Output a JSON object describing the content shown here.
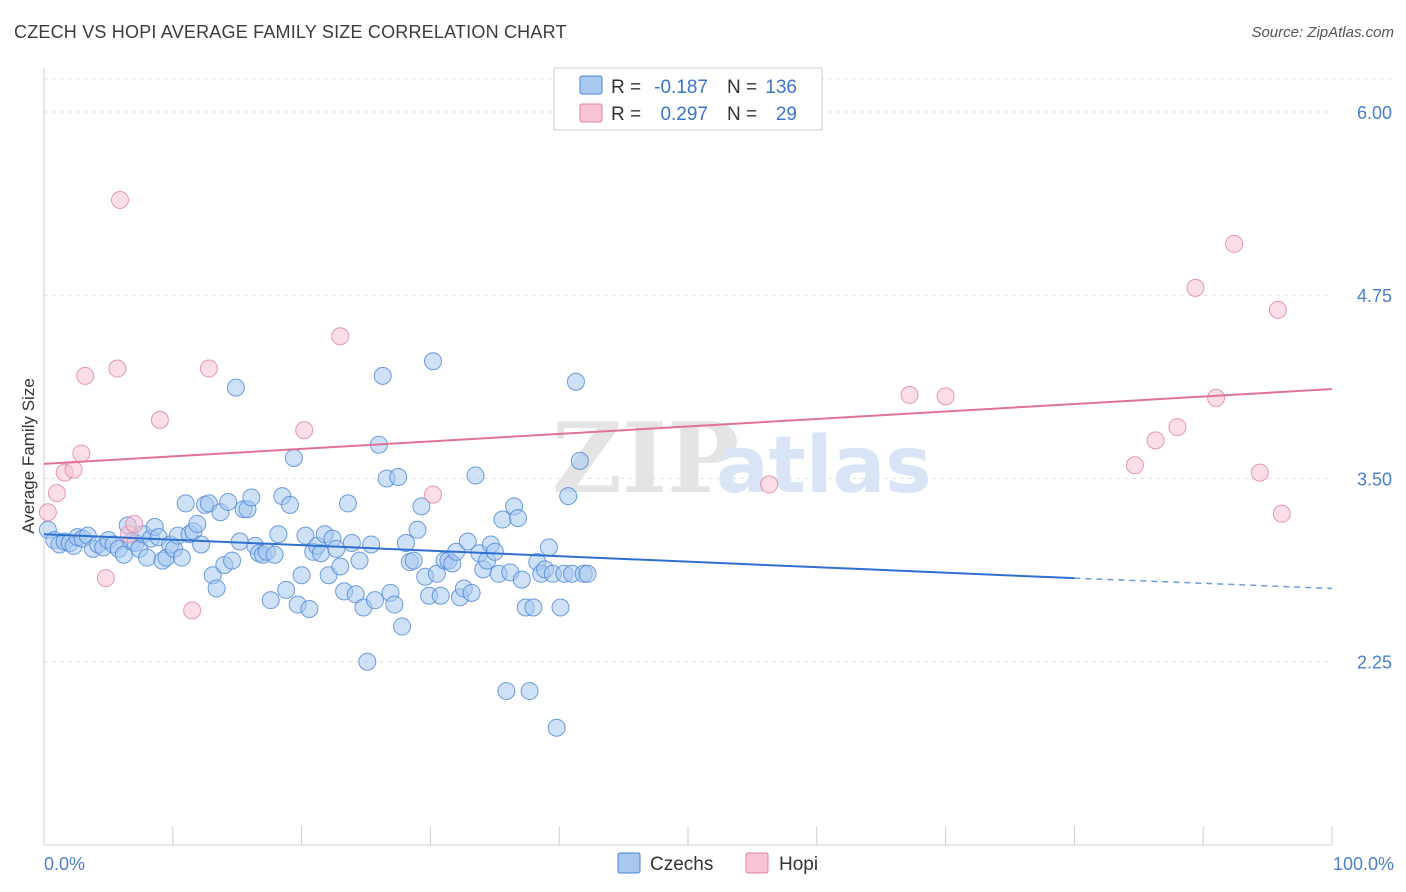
{
  "header": {
    "title": "CZECH VS HOPI AVERAGE FAMILY SIZE CORRELATION CHART",
    "source": "Source: ZipAtlas.com"
  },
  "watermark": {
    "zip": "ZIP",
    "atlas": "atlas"
  },
  "legend": {
    "rows": [
      {
        "r_label": "R =",
        "r_value": "-0.187",
        "n_label": "N =",
        "n_value": "136",
        "color": "#a8c8f0",
        "stroke": "#4a86d8"
      },
      {
        "r_label": "R =",
        "r_value": "0.297",
        "n_label": "N =",
        "n_value": "29",
        "color": "#f8c3d3",
        "stroke": "#e27fa0"
      }
    ]
  },
  "bottom_legend": [
    {
      "label": "Czechs",
      "color": "#a8c8f0",
      "stroke": "#4a86d8"
    },
    {
      "label": "Hopi",
      "color": "#f8c3d3",
      "stroke": "#e27fa0"
    }
  ],
  "chart_data": {
    "type": "scatter",
    "title": "CZECH VS HOPI AVERAGE FAMILY SIZE CORRELATION CHART",
    "xlabel": "",
    "ylabel": "Average Family Size",
    "xlim": [
      0,
      100
    ],
    "ylim": [
      1.0,
      6.3
    ],
    "y_ticks": [
      2.25,
      3.5,
      4.75,
      6.0
    ],
    "y_tick_labels": [
      "2.25",
      "3.50",
      "4.75",
      "6.00"
    ],
    "x_tick_labels": [
      "0.0%",
      "100.0%"
    ],
    "series": [
      {
        "name": "Czechs",
        "color": "#a8c8f0",
        "stroke": "#4a86d8",
        "trend": {
          "x0": 0,
          "y0": 3.12,
          "x1": 80,
          "y1": 2.82,
          "dash_x1": 100,
          "dash_y1": 2.75,
          "color": "#2f6fcf"
        },
        "points": [
          [
            0.3,
            3.15
          ],
          [
            0.8,
            3.08
          ],
          [
            1.2,
            3.05
          ],
          [
            1.6,
            3.07
          ],
          [
            2.0,
            3.06
          ],
          [
            2.3,
            3.04
          ],
          [
            2.6,
            3.1
          ],
          [
            3.0,
            3.09
          ],
          [
            3.4,
            3.11
          ],
          [
            3.8,
            3.02
          ],
          [
            4.2,
            3.05
          ],
          [
            4.6,
            3.03
          ],
          [
            5.0,
            3.08
          ],
          [
            5.4,
            3.05
          ],
          [
            5.8,
            3.02
          ],
          [
            6.2,
            2.98
          ],
          [
            6.5,
            3.18
          ],
          [
            6.8,
            3.07
          ],
          [
            7.1,
            3.06
          ],
          [
            7.4,
            3.02
          ],
          [
            7.7,
            3.12
          ],
          [
            8.0,
            2.96
          ],
          [
            8.3,
            3.09
          ],
          [
            8.6,
            3.17
          ],
          [
            8.9,
            3.1
          ],
          [
            9.2,
            2.94
          ],
          [
            9.5,
            2.96
          ],
          [
            9.8,
            3.05
          ],
          [
            10.1,
            3.02
          ],
          [
            10.4,
            3.11
          ],
          [
            10.7,
            2.96
          ],
          [
            11.0,
            3.33
          ],
          [
            11.3,
            3.12
          ],
          [
            11.6,
            3.14
          ],
          [
            11.9,
            3.19
          ],
          [
            12.2,
            3.05
          ],
          [
            12.5,
            3.32
          ],
          [
            12.8,
            3.33
          ],
          [
            13.1,
            2.84
          ],
          [
            13.4,
            2.75
          ],
          [
            13.7,
            3.27
          ],
          [
            14.0,
            2.91
          ],
          [
            14.3,
            3.34
          ],
          [
            14.6,
            2.94
          ],
          [
            14.9,
            4.12
          ],
          [
            15.2,
            3.07
          ],
          [
            15.5,
            3.29
          ],
          [
            15.8,
            3.29
          ],
          [
            16.1,
            3.37
          ],
          [
            16.4,
            3.04
          ],
          [
            16.7,
            2.99
          ],
          [
            17.0,
            2.98
          ],
          [
            17.3,
            3.0
          ],
          [
            17.6,
            2.67
          ],
          [
            17.9,
            2.98
          ],
          [
            18.2,
            3.12
          ],
          [
            18.5,
            3.38
          ],
          [
            18.8,
            2.74
          ],
          [
            19.1,
            3.32
          ],
          [
            19.4,
            3.64
          ],
          [
            19.7,
            2.64
          ],
          [
            20.0,
            2.84
          ],
          [
            20.3,
            3.11
          ],
          [
            20.6,
            2.61
          ],
          [
            20.9,
            3.0
          ],
          [
            21.2,
            3.04
          ],
          [
            21.5,
            2.99
          ],
          [
            21.8,
            3.12
          ],
          [
            22.1,
            2.84
          ],
          [
            22.4,
            3.09
          ],
          [
            22.7,
            3.02
          ],
          [
            23.0,
            2.9
          ],
          [
            23.3,
            2.73
          ],
          [
            23.6,
            3.33
          ],
          [
            23.9,
            3.06
          ],
          [
            24.2,
            2.71
          ],
          [
            24.5,
            2.94
          ],
          [
            24.8,
            2.62
          ],
          [
            25.1,
            2.25
          ],
          [
            25.4,
            3.05
          ],
          [
            25.7,
            2.67
          ],
          [
            26.0,
            3.73
          ],
          [
            26.3,
            4.2
          ],
          [
            26.6,
            3.5
          ],
          [
            26.9,
            2.72
          ],
          [
            27.2,
            2.64
          ],
          [
            27.5,
            3.51
          ],
          [
            27.8,
            2.49
          ],
          [
            28.1,
            3.06
          ],
          [
            28.4,
            2.93
          ],
          [
            28.7,
            2.94
          ],
          [
            29.0,
            3.15
          ],
          [
            29.3,
            3.31
          ],
          [
            29.6,
            2.83
          ],
          [
            29.9,
            2.7
          ],
          [
            30.2,
            4.3
          ],
          [
            30.5,
            2.85
          ],
          [
            30.8,
            2.7
          ],
          [
            31.1,
            2.94
          ],
          [
            31.4,
            2.94
          ],
          [
            31.7,
            2.92
          ],
          [
            32.0,
            3.0
          ],
          [
            32.3,
            2.69
          ],
          [
            32.6,
            2.75
          ],
          [
            32.9,
            3.07
          ],
          [
            33.2,
            2.72
          ],
          [
            33.5,
            3.52
          ],
          [
            33.8,
            2.99
          ],
          [
            34.1,
            2.88
          ],
          [
            34.4,
            2.94
          ],
          [
            34.7,
            3.05
          ],
          [
            35.0,
            3.0
          ],
          [
            35.3,
            2.85
          ],
          [
            35.6,
            3.22
          ],
          [
            35.9,
            2.05
          ],
          [
            36.2,
            2.86
          ],
          [
            36.5,
            3.31
          ],
          [
            36.8,
            3.23
          ],
          [
            37.1,
            2.81
          ],
          [
            37.4,
            2.62
          ],
          [
            37.7,
            2.05
          ],
          [
            38.0,
            2.62
          ],
          [
            38.3,
            2.93
          ],
          [
            38.6,
            2.85
          ],
          [
            38.9,
            2.88
          ],
          [
            39.2,
            3.03
          ],
          [
            39.5,
            2.85
          ],
          [
            39.8,
            1.8
          ],
          [
            40.1,
            2.62
          ],
          [
            40.4,
            2.85
          ],
          [
            40.7,
            3.38
          ],
          [
            41.0,
            2.85
          ],
          [
            41.3,
            4.16
          ],
          [
            41.6,
            3.62
          ],
          [
            41.9,
            2.85
          ],
          [
            42.2,
            2.85
          ]
        ]
      },
      {
        "name": "Hopi",
        "color": "#f8c3d3",
        "stroke": "#e27fa0",
        "trend": {
          "x0": 0,
          "y0": 3.6,
          "x1": 100,
          "y1": 4.11,
          "color": "#e0729a"
        },
        "points": [
          [
            0.3,
            3.27
          ],
          [
            1.0,
            3.4
          ],
          [
            1.6,
            3.54
          ],
          [
            2.3,
            3.56
          ],
          [
            2.9,
            3.67
          ],
          [
            3.2,
            4.2
          ],
          [
            4.8,
            2.82
          ],
          [
            5.7,
            4.25
          ],
          [
            5.9,
            5.4
          ],
          [
            6.6,
            3.12
          ],
          [
            7.0,
            3.19
          ],
          [
            9.0,
            3.9
          ],
          [
            11.5,
            2.6
          ],
          [
            12.8,
            4.25
          ],
          [
            20.2,
            3.83
          ],
          [
            23.0,
            4.47
          ],
          [
            30.2,
            3.39
          ],
          [
            56.3,
            3.46
          ],
          [
            67.2,
            4.07
          ],
          [
            84.7,
            3.59
          ],
          [
            86.3,
            3.76
          ],
          [
            88.0,
            3.85
          ],
          [
            89.4,
            4.8
          ],
          [
            92.4,
            5.1
          ],
          [
            94.4,
            3.54
          ],
          [
            95.8,
            4.65
          ],
          [
            96.1,
            3.26
          ],
          [
            91.0,
            4.05
          ],
          [
            70.0,
            4.06
          ]
        ]
      }
    ]
  }
}
